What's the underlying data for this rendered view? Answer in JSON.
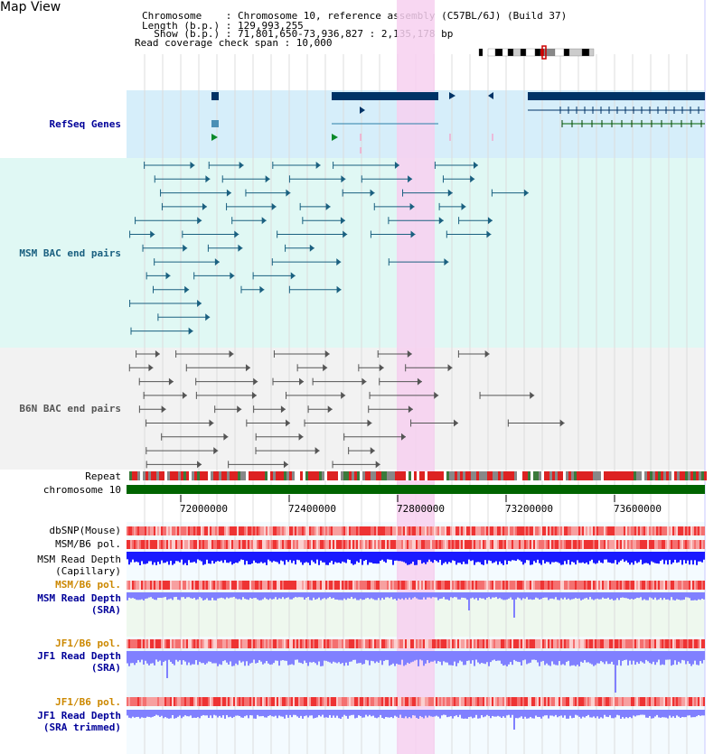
{
  "header": {
    "title": "Map View",
    "info_lines": [
      "Chromosome    : Chromosome 10, reference assembly (C57BL/6J) (Build 37)",
      "Length (b.p.) : 129,993,255",
      "  Show (b.p.) : 71,801,650-73,936,827 : 2,135,178 bp",
      "Read coverage check span : 10,000"
    ]
  },
  "tracks": {
    "refseq": "RefSeq Genes",
    "msm_bac": "MSM BAC end pairs",
    "b6n_bac": "B6N BAC end pairs",
    "repeat": "Repeat",
    "chromosome": "chromosome 10",
    "dbsnp": "dbSNP(Mouse)",
    "msm_b6_pol": "MSM/B6 pol.",
    "msm_depth_cap_1": "MSM Read Depth",
    "msm_depth_cap_2": "(Capillary)",
    "msm_b6_pol_2": "MSM/B6 pol.",
    "msm_depth_sra_1": "MSM Read Depth",
    "msm_depth_sra_2": "(SRA)",
    "jf1_b6_pol": "JF1/B6 pol.",
    "jf1_depth_sra_1": "JF1 Read Depth",
    "jf1_depth_sra_2": "(SRA)",
    "jf1_b6_pol_2": "JF1/B6 pol.",
    "jf1_depth_trim_1": "JF1 Read Depth",
    "jf1_depth_trim_2": "(SRA trimmed)"
  },
  "axis": {
    "ticks": [
      "72000000",
      "72400000",
      "72800000",
      "73200000",
      "73600000"
    ]
  },
  "colors": {
    "refseq_bg": "#d6eefa",
    "msm_bg": "#e0f8f4",
    "b6n_bg": "#f2f2f2",
    "highlight": "#f7d0f0",
    "chromosome": "#006400",
    "gene": "#003366",
    "bac": "#1a6080",
    "depth_cap": "#1a1aff",
    "depth_sra": "#8080ff",
    "label_blue": "#000099",
    "label_orange": "#cc8800",
    "label_teal": "#1a6080"
  }
}
